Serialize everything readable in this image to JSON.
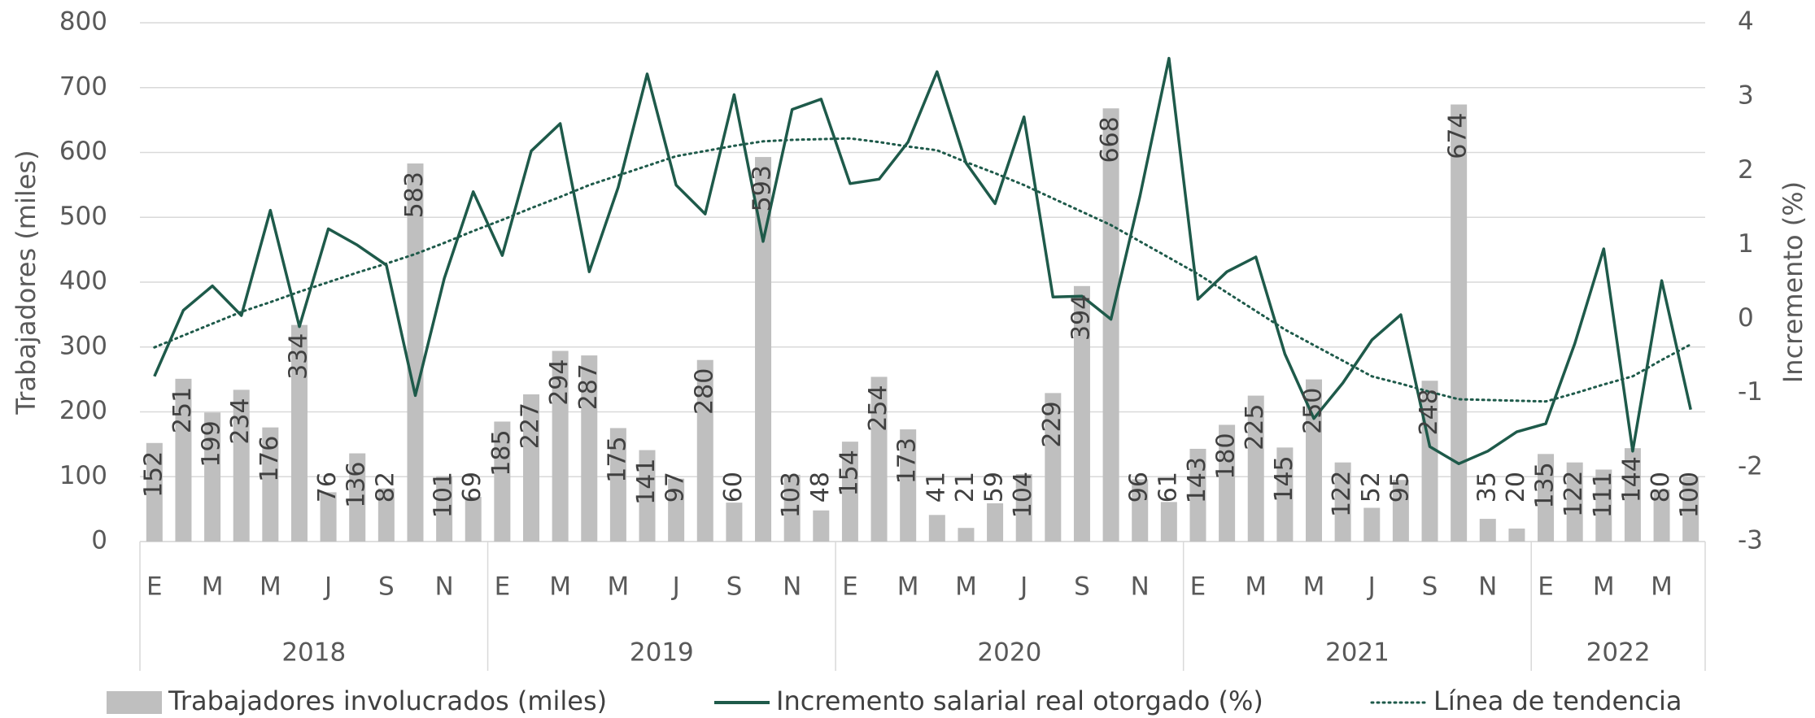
{
  "chart_data": {
    "type": "bar_line",
    "y_label": "Trabajadores (miles)",
    "y2_label": "Incremento (%)",
    "categories": [
      "E",
      null,
      "M",
      null,
      "M",
      null,
      "J",
      null,
      "S",
      null,
      "N",
      null,
      "E",
      null,
      "M",
      null,
      "M",
      null,
      "J",
      null,
      "S",
      null,
      "N",
      null,
      "E",
      null,
      "M",
      null,
      "M",
      null,
      "J",
      null,
      "S",
      null,
      "N",
      null,
      "E",
      null,
      "M",
      null,
      "M",
      null,
      "J",
      null,
      "S",
      null,
      "N",
      null,
      "E",
      null,
      "M",
      null,
      "M",
      null
    ],
    "groups": [
      "2018",
      "2019",
      "2020",
      "2021",
      "2022"
    ],
    "group_size": 12,
    "series": [
      {
        "name": "Trabajadores involucrados (miles)",
        "type": "bar",
        "color": "#bfbfbf",
        "values": [
          152,
          251,
          199,
          234,
          176,
          334,
          76,
          136,
          82,
          583,
          101,
          69,
          185,
          227,
          294,
          287,
          175,
          141,
          97,
          280,
          60,
          593,
          103,
          48,
          154,
          254,
          173,
          41,
          21,
          59,
          104,
          229,
          394,
          668,
          96,
          61,
          143,
          180,
          225,
          145,
          250,
          122,
          52,
          95,
          248,
          674,
          35,
          20,
          135,
          122,
          111,
          144,
          80,
          100
        ]
      },
      {
        "name": "Incremento salarial real otorgado (%)",
        "type": "line",
        "axis": "y2",
        "color": "#1e5a4a",
        "values": [
          -0.77,
          0.12,
          0.45,
          0.05,
          1.47,
          -0.1,
          1.22,
          1.0,
          0.73,
          -1.03,
          0.55,
          1.72,
          0.86,
          2.27,
          2.64,
          0.64,
          1.78,
          3.31,
          1.81,
          1.42,
          3.03,
          1.05,
          2.83,
          2.97,
          1.83,
          1.89,
          2.39,
          3.34,
          2.11,
          1.56,
          2.73,
          0.3,
          0.31,
          0.0,
          1.66,
          3.52,
          0.27,
          0.64,
          0.84,
          -0.47,
          -1.34,
          -0.86,
          -0.28,
          0.06,
          -1.72,
          -1.95,
          -1.78,
          -1.52,
          -1.41,
          -0.33,
          0.95,
          -1.78,
          0.52,
          -1.22
        ]
      },
      {
        "name": "Línea de tendencia",
        "type": "line",
        "axis": "y2",
        "color": "#1e5a4a",
        "dash": "dotted",
        "values": [
          -0.38,
          -0.22,
          -0.06,
          0.1,
          0.23,
          0.37,
          0.5,
          0.63,
          0.75,
          0.88,
          1.03,
          1.19,
          1.34,
          1.5,
          1.65,
          1.81,
          1.94,
          2.07,
          2.2,
          2.27,
          2.34,
          2.4,
          2.42,
          2.43,
          2.44,
          2.39,
          2.33,
          2.28,
          2.12,
          1.97,
          1.81,
          1.63,
          1.45,
          1.27,
          1.05,
          0.83,
          0.61,
          0.36,
          0.11,
          -0.14,
          -0.35,
          -0.56,
          -0.77,
          -0.87,
          -0.98,
          -1.08,
          -1.09,
          -1.1,
          -1.11,
          -1.0,
          -0.88,
          -0.77,
          -0.55,
          -0.34
        ]
      }
    ],
    "ylim": [
      0,
      800
    ],
    "yticks": [
      0,
      100,
      200,
      300,
      400,
      500,
      600,
      700,
      800
    ],
    "y2lim": [
      -3,
      4
    ],
    "y2ticks": [
      -3,
      -2,
      -1,
      0,
      1,
      2,
      3,
      4
    ],
    "grid": true,
    "data_labels": true,
    "legend": "bottom"
  }
}
